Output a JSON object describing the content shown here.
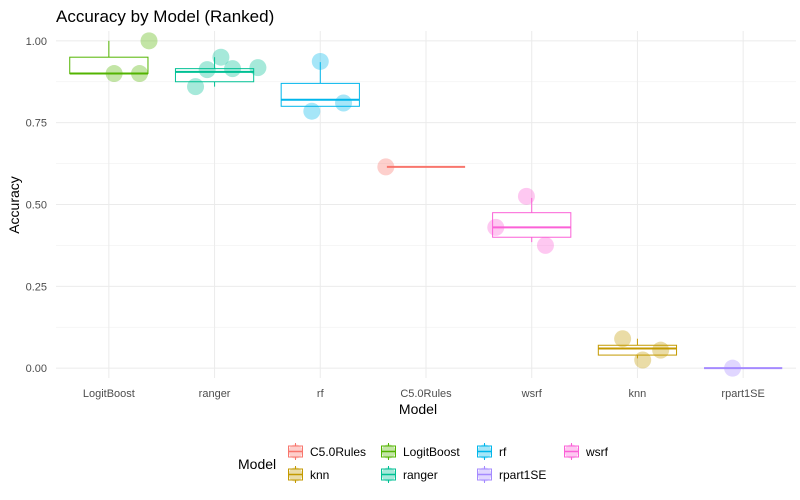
{
  "chart_data": {
    "type": "box",
    "title": "Accuracy by Model (Ranked)",
    "xlabel": "Model",
    "ylabel": "Accuracy",
    "ylim": [
      -0.03,
      1.03
    ],
    "yticks": [
      0.0,
      0.25,
      0.5,
      0.75,
      1.0
    ],
    "ytick_labels": [
      "0.00",
      "0.25",
      "0.50",
      "0.75",
      "1.00"
    ],
    "grid": true,
    "legend_position": "bottom",
    "legend_title": "Model",
    "categories": [
      "LogitBoost",
      "ranger",
      "rf",
      "C5.0Rules",
      "wsrf",
      "knn",
      "rpart1SE"
    ],
    "legend_order": [
      "C5.0Rules",
      "knn",
      "LogitBoost",
      "ranger",
      "rf",
      "rpart1SE",
      "wsrf"
    ],
    "colors": {
      "C5.0Rules": "#F8766D",
      "knn": "#C49A00",
      "LogitBoost": "#53B400",
      "ranger": "#00C094",
      "rf": "#00B6EB",
      "rpart1SE": "#A58AFF",
      "wsrf": "#FB61D7"
    },
    "series": [
      {
        "name": "LogitBoost",
        "box": {
          "min": 0.9,
          "q1": 0.9,
          "median": 0.9,
          "q3": 0.95,
          "max": 1.0
        },
        "points": [
          0.9,
          0.9,
          1.0
        ],
        "jitter": [
          0.05,
          0.29,
          0.38
        ]
      },
      {
        "name": "ranger",
        "box": {
          "min": 0.86,
          "q1": 0.875,
          "median": 0.905,
          "q3": 0.915,
          "max": 0.95
        },
        "points": [
          0.86,
          0.912,
          0.95,
          0.915,
          0.918
        ],
        "jitter": [
          -0.18,
          -0.07,
          0.06,
          0.17,
          0.41
        ]
      },
      {
        "name": "rf",
        "box": {
          "min": 0.8,
          "q1": 0.8,
          "median": 0.82,
          "q3": 0.87,
          "max": 0.935
        },
        "points": [
          0.785,
          0.937,
          0.81
        ],
        "jitter": [
          -0.08,
          0.0,
          0.22
        ]
      },
      {
        "name": "C5.0Rules",
        "box": {
          "min": 0.615,
          "q1": 0.615,
          "median": 0.615,
          "q3": 0.615,
          "max": 0.615
        },
        "points": [
          0.615
        ],
        "jitter": [
          -0.38
        ]
      },
      {
        "name": "wsrf",
        "box": {
          "min": 0.385,
          "q1": 0.4,
          "median": 0.43,
          "q3": 0.475,
          "max": 0.52
        },
        "points": [
          0.525,
          0.43,
          0.375
        ],
        "jitter": [
          -0.05,
          -0.34,
          0.13
        ]
      },
      {
        "name": "knn",
        "box": {
          "min": 0.03,
          "q1": 0.04,
          "median": 0.06,
          "q3": 0.07,
          "max": 0.09
        },
        "points": [
          0.09,
          0.025,
          0.055
        ],
        "jitter": [
          -0.14,
          0.05,
          0.22
        ]
      },
      {
        "name": "rpart1SE",
        "box": {
          "min": 0.0,
          "q1": 0.0,
          "median": 0.0,
          "q3": 0.0,
          "max": 0.0
        },
        "points": [
          0.0
        ],
        "jitter": [
          -0.1
        ]
      }
    ]
  }
}
